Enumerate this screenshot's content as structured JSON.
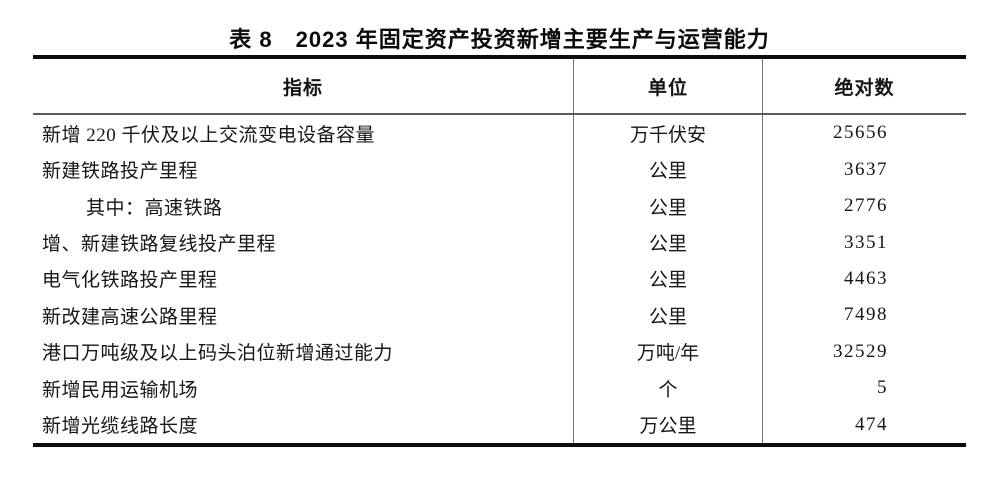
{
  "table": {
    "title": "表 8　2023 年固定资产投资新增主要生产与运营能力",
    "columns": {
      "indicator": "指标",
      "unit": "单位",
      "value": "绝对数"
    },
    "rows": [
      {
        "indicator": "新增 220 千伏及以上交流变电设备容量",
        "unit": "万千伏安",
        "value": "25656"
      },
      {
        "indicator": "新建铁路投产里程",
        "unit": "公里",
        "value": "3637"
      },
      {
        "indicator": "其中：高速铁路",
        "unit": "公里",
        "value": "2776"
      },
      {
        "indicator": "增、新建铁路复线投产里程",
        "unit": "公里",
        "value": "3351"
      },
      {
        "indicator": "电气化铁路投产里程",
        "unit": "公里",
        "value": "4463"
      },
      {
        "indicator": "新改建高速公路里程",
        "unit": "公里",
        "value": "7498"
      },
      {
        "indicator": "港口万吨级及以上码头泊位新增通过能力",
        "unit": "万吨/年",
        "value": "32529"
      },
      {
        "indicator": "新增民用运输机场",
        "unit": "个",
        "value": "5"
      },
      {
        "indicator": "新增光缆线路长度",
        "unit": "万公里",
        "value": "474"
      }
    ],
    "colors": {
      "rule_heavy": "#0d0d0d",
      "rule_light": "#707070",
      "text": "#161616",
      "background": "#ffffff"
    }
  }
}
